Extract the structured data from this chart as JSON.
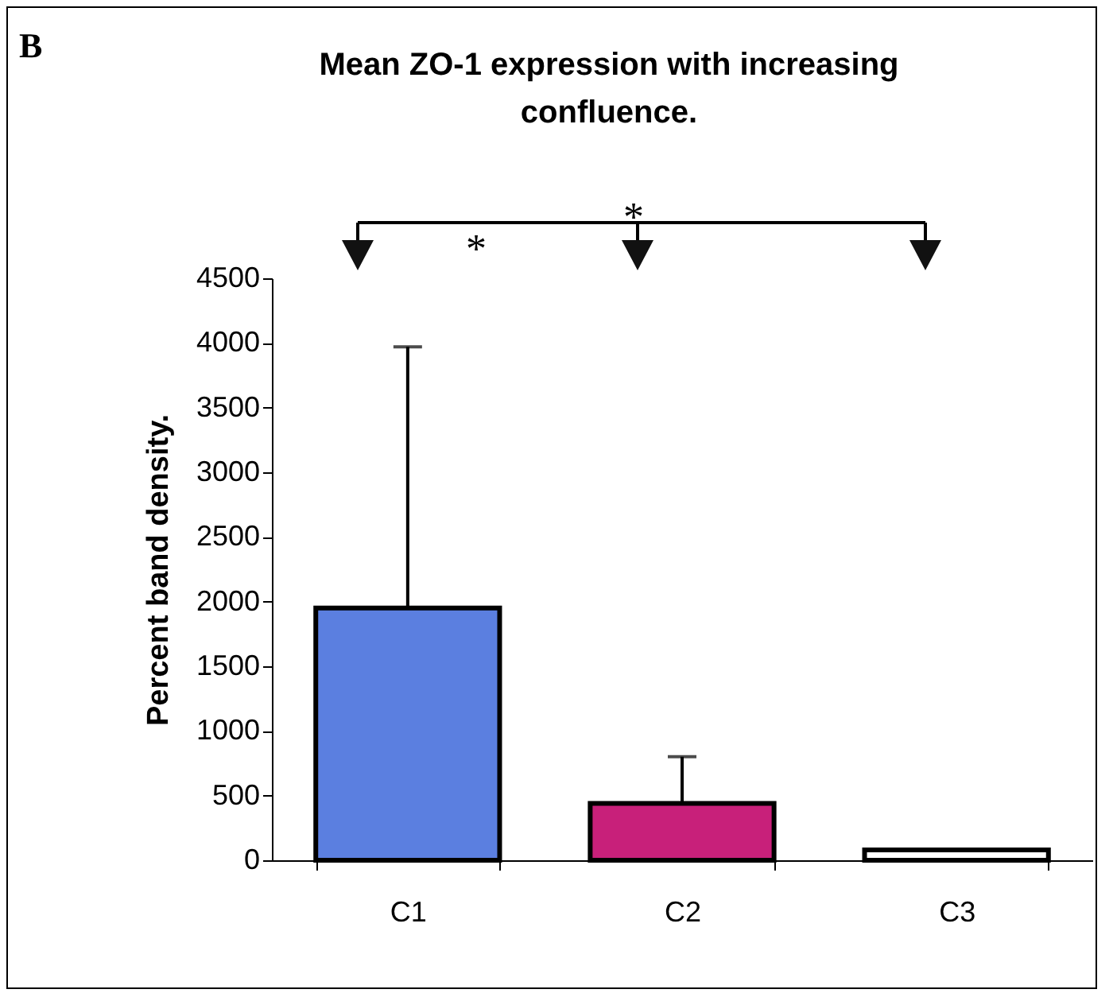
{
  "chart_data": {
    "type": "bar",
    "title": "Mean ZO-1 expression with increasing confluence.",
    "ylabel": "Percent band density.",
    "categories": [
      "C1",
      "C2",
      "C3"
    ],
    "values": [
      1950,
      440,
      80
    ],
    "colors": [
      "#5b7fe0",
      "#c8207a",
      "#ffffff"
    ],
    "errors": [
      [
        1950,
        3970
      ],
      [
        440,
        800
      ],
      null
    ],
    "ylim": [
      0,
      4500
    ],
    "yticks": [
      0,
      500,
      1000,
      1500,
      2000,
      2500,
      3000,
      3500,
      4000,
      4500
    ],
    "annotations": [
      "B",
      "*",
      "*"
    ]
  }
}
